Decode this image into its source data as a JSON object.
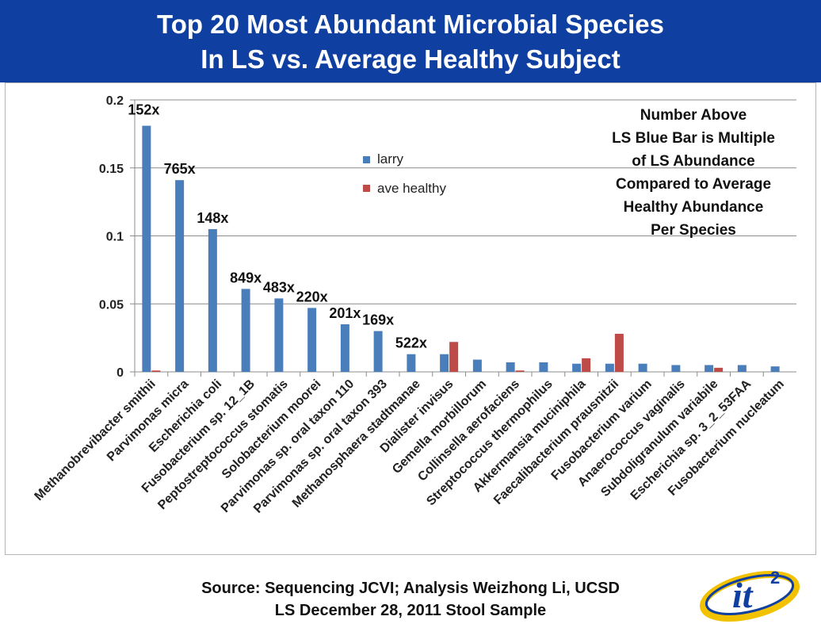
{
  "slide": {
    "title_line1": "Top 20 Most Abundant Microbial Species",
    "title_line2": "In LS vs. Average Healthy Subject",
    "note_lines": [
      "Number Above",
      "LS Blue Bar is Multiple",
      "of LS Abundance",
      "Compared to Average",
      "Healthy Abundance",
      "Per Species"
    ],
    "footer_line1": "Source: Sequencing JCVI; Analysis Weizhong Li, UCSD",
    "footer_line2": "LS December 28, 2011 Stool Sample",
    "logo_text": "it",
    "logo_superscript": "2",
    "colors": {
      "banner": "#0f3fa0",
      "larry": "#4a7ebb",
      "healthy": "#be4b48",
      "logo_blue": "#0f3fa0",
      "logo_gold": "#f2c200"
    }
  },
  "chart_data": {
    "type": "bar",
    "categories": [
      "Methanobrevibacter smithii",
      "Parvimonas micra",
      "Escherichia coli",
      "Fusobacterium sp. 12_1B",
      "Peptostreptococcus stomatis",
      "Solobacterium moorei",
      "Parvimonas sp. oral taxon 110",
      "Parvimonas sp. oral taxon 393",
      "Methanosphaera stadtmanae",
      "Dialister invisus",
      "Gemella morbillorum",
      "Collinsella aerofaciens",
      "Streptococcus thermophilus",
      "Akkermansia muciniphila",
      "Faecalibacterium prausnitzii",
      "Fusobacterium varium",
      "Anaerococcus vaginalis",
      "Subdoligranulum variabile",
      "Escherichia sp. 3_2_53FAA",
      "Fusobacterium nucleatum"
    ],
    "series": [
      {
        "name": "larry",
        "values": [
          0.181,
          0.141,
          0.105,
          0.061,
          0.054,
          0.047,
          0.035,
          0.03,
          0.013,
          0.013,
          0.009,
          0.007,
          0.007,
          0.006,
          0.006,
          0.006,
          0.005,
          0.005,
          0.005,
          0.004
        ]
      },
      {
        "name": "ave healthy",
        "values": [
          0.001,
          0.0,
          0.0,
          0.0,
          0.0,
          0.0,
          0.0,
          0.0,
          0.0,
          0.022,
          0.0,
          0.001,
          0.0,
          0.01,
          0.028,
          0.0,
          0.0,
          0.003,
          0.0,
          0.0
        ]
      }
    ],
    "bar_labels": [
      "152x",
      "765x",
      "148x",
      "849x",
      "483x",
      "220x",
      "201x",
      "169x",
      "522x",
      "",
      "",
      "",
      "",
      "",
      "",
      "",
      "",
      "",
      "",
      ""
    ],
    "ylim": [
      0,
      0.2
    ],
    "y_ticks": [
      "0",
      "0.05",
      "0.1",
      "0.15",
      "0.2"
    ],
    "y_tick_values": [
      0,
      0.05,
      0.1,
      0.15,
      0.2
    ],
    "title": "",
    "xlabel": "",
    "ylabel": "",
    "grid": true,
    "legend_position": "top-center"
  }
}
